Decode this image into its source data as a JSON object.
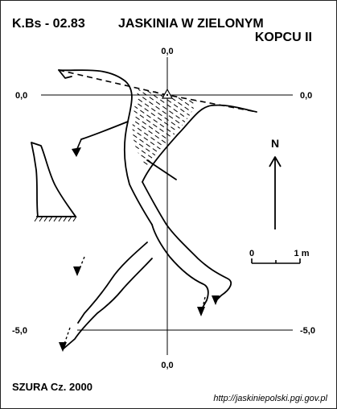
{
  "header": {
    "code": "K.Bs - 02.83",
    "title_line1": "JASKINIA W ZIELONYM",
    "title_line2": "KOPCU II"
  },
  "grid_labels": {
    "top": "0,0",
    "left": "0,0",
    "right": "0,0",
    "bottom": "0,0",
    "bottom_left": "-5,0",
    "bottom_right": "-5,0"
  },
  "north_label": "N",
  "scale": {
    "start": "0",
    "end": "1 m"
  },
  "footer": {
    "author": "SZURA Cz. 2000",
    "url": "http://jaskiniepolski.pgi.gov.pl"
  }
}
